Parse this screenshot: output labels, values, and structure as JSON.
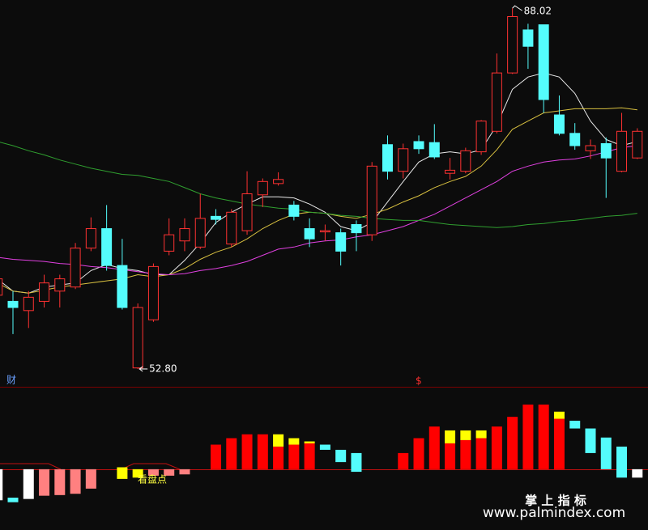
{
  "chart_data": [
    {
      "type": "candlestick",
      "up_color": "#ff3232",
      "down_color": "#54fcfc",
      "open": [
        60.0,
        59.4,
        58.5,
        59.4,
        60.4,
        60.8,
        64.6,
        66.5,
        62.9,
        52.9,
        57.6,
        64.3,
        65.3,
        64.7,
        67.7,
        65.0,
        66.3,
        69.8,
        70.9,
        68.8,
        66.5,
        66.2,
        66.1,
        66.9,
        65.9,
        74.7,
        72.1,
        75.0,
        74.9,
        71.9,
        72.1,
        74.0,
        76.0,
        81.7,
        85.9,
        86.4,
        77.6,
        75.8,
        74.1,
        74.8,
        72.1,
        73.4
      ],
      "close": [
        61.6,
        58.8,
        59.8,
        61.2,
        61.6,
        64.6,
        66.5,
        62.9,
        58.8,
        58.8,
        62.8,
        65.9,
        66.5,
        67.5,
        67.4,
        68.1,
        69.9,
        71.1,
        71.3,
        67.7,
        65.5,
        66.3,
        64.3,
        66.1,
        72.6,
        72.1,
        74.3,
        74.3,
        73.5,
        72.2,
        74.1,
        77.0,
        81.7,
        87.2,
        84.3,
        79.1,
        75.8,
        74.6,
        74.6,
        73.4,
        76.0,
        76.0
      ],
      "high": [
        62.0,
        60.4,
        60.4,
        62.0,
        62.0,
        65.1,
        67.6,
        68.8,
        65.5,
        59.2,
        63.1,
        67.5,
        67.5,
        69.9,
        68.4,
        68.4,
        72.1,
        71.4,
        72.0,
        69.2,
        67.5,
        66.9,
        66.5,
        67.3,
        73.0,
        75.6,
        74.8,
        75.6,
        76.7,
        73.4,
        74.4,
        77.1,
        83.6,
        88.02,
        86.5,
        86.4,
        79.5,
        76.8,
        75.2,
        75.4,
        77.8,
        76.3
      ],
      "low": [
        59.6,
        56.2,
        56.8,
        58.8,
        58.8,
        60.6,
        64.3,
        62.4,
        58.6,
        52.8,
        57.4,
        63.9,
        64.3,
        64.5,
        66.9,
        64.7,
        65.9,
        68.6,
        70.7,
        67.3,
        64.7,
        65.3,
        62.9,
        64.3,
        65.3,
        71.3,
        71.4,
        73.8,
        73.3,
        71.3,
        71.9,
        73.7,
        75.8,
        81.6,
        82.1,
        77.8,
        75.6,
        74.2,
        73.3,
        69.5,
        72.0,
        73.3
      ],
      "high_value_labels": [
        null,
        null,
        null,
        null,
        null,
        null,
        null,
        null,
        null,
        null,
        null,
        null,
        null,
        null,
        null,
        null,
        null,
        null,
        null,
        null,
        null,
        null,
        null,
        null,
        null,
        null,
        null,
        null,
        null,
        null,
        null,
        null,
        null,
        "88.02",
        null,
        null,
        null,
        null,
        null,
        null,
        null,
        null
      ],
      "low_value_labels": [
        null,
        null,
        null,
        null,
        null,
        null,
        null,
        null,
        null,
        "52.80",
        null,
        null,
        null,
        null,
        null,
        null,
        null,
        null,
        null,
        null,
        null,
        null,
        null,
        null,
        null,
        null,
        null,
        null,
        null,
        null,
        null,
        null,
        null,
        null,
        null,
        null,
        null,
        null,
        null,
        null,
        null,
        null
      ],
      "lines": [
        {
          "color": "#e8e8e8",
          "values": [
            61.6,
            60.4,
            60.2,
            60.8,
            61.0,
            61.2,
            62.4,
            63.0,
            62.6,
            62.4,
            62.0,
            62.0,
            63.4,
            65.1,
            67.1,
            68.1,
            68.9,
            69.6,
            69.6,
            69.5,
            68.9,
            68.1,
            66.7,
            66.3,
            67.1,
            69.1,
            71.1,
            73.0,
            73.8,
            74.0,
            73.8,
            74.2,
            76.6,
            80.1,
            81.3,
            81.7,
            81.3,
            79.7,
            77.0,
            75.2,
            74.6,
            75.0
          ]
        },
        {
          "color": "#d8c040",
          "values": [
            61.2,
            60.4,
            60.2,
            60.5,
            60.8,
            61.0,
            61.2,
            61.4,
            61.6,
            62.0,
            61.8,
            62.0,
            62.6,
            63.5,
            64.2,
            64.7,
            65.5,
            66.5,
            67.3,
            67.9,
            68.1,
            68.0,
            67.7,
            67.5,
            67.9,
            68.4,
            69.1,
            69.7,
            70.5,
            71.1,
            71.6,
            72.6,
            74.2,
            76.2,
            77.0,
            77.8,
            78.0,
            78.2,
            78.2,
            78.2,
            78.3,
            78.1
          ]
        },
        {
          "color": "#e040e0",
          "values": [
            63.7,
            63.5,
            63.4,
            63.3,
            63.1,
            63.0,
            62.8,
            62.7,
            62.5,
            62.3,
            62.1,
            62.0,
            62.1,
            62.4,
            62.6,
            62.9,
            63.3,
            63.9,
            64.5,
            64.7,
            65.1,
            65.3,
            65.4,
            65.7,
            65.9,
            66.3,
            66.7,
            67.3,
            67.9,
            68.7,
            69.5,
            70.3,
            71.1,
            72.1,
            72.6,
            73.0,
            73.2,
            73.3,
            73.6,
            74.0,
            74.4,
            74.6
          ]
        },
        {
          "color": "#30a030",
          "values": [
            75.0,
            74.6,
            74.1,
            73.7,
            73.2,
            72.8,
            72.4,
            72.1,
            71.8,
            71.7,
            71.4,
            71.1,
            70.5,
            69.9,
            69.5,
            69.2,
            68.9,
            68.7,
            68.5,
            68.4,
            68.1,
            68.0,
            67.8,
            67.7,
            67.5,
            67.4,
            67.3,
            67.3,
            67.1,
            66.9,
            66.8,
            66.7,
            66.6,
            66.7,
            66.9,
            67.0,
            67.2,
            67.3,
            67.5,
            67.7,
            67.8,
            68.0
          ]
        }
      ],
      "ylim": [
        51.06,
        88.82
      ],
      "corner_label": "财",
      "marker_label": "$"
    },
    {
      "type": "range-bar",
      "title": "看盘点",
      "x": [
        0,
        1,
        2,
        3,
        4,
        5,
        6,
        8,
        9,
        10,
        11,
        12,
        14,
        15,
        16,
        17,
        18,
        18,
        19,
        19,
        20,
        20,
        21,
        22,
        23,
        26,
        27,
        28,
        29,
        29,
        30,
        30,
        31,
        31,
        32,
        33,
        34,
        35,
        36,
        36,
        37,
        38,
        39,
        40,
        41
      ],
      "from": [
        0,
        -0.44,
        0,
        0,
        0,
        0,
        0,
        0.03,
        0,
        0,
        0,
        0,
        0,
        0,
        0,
        0,
        0,
        0.35,
        0,
        0.38,
        0,
        0.4,
        0.38,
        0.3,
        0.25,
        0,
        0,
        0,
        0,
        0.4,
        0,
        0.45,
        0,
        0.48,
        0,
        0,
        0,
        0,
        0,
        0.78,
        0.75,
        0.63,
        0.49,
        0.35,
        0
      ],
      "to": [
        -0.48,
        -0.51,
        -0.46,
        -0.41,
        -0.4,
        -0.38,
        -0.3,
        -0.15,
        -0.13,
        -0.1,
        -0.1,
        -0.08,
        0.38,
        0.48,
        0.54,
        0.54,
        0.35,
        0.54,
        0.38,
        0.48,
        0.4,
        0.43,
        0.3,
        0.11,
        -0.04,
        0.25,
        0.48,
        0.66,
        0.4,
        0.6,
        0.45,
        0.6,
        0.48,
        0.6,
        0.66,
        0.81,
        1,
        1,
        0.78,
        0.89,
        0.63,
        0.25,
        0,
        -0.13,
        -0.13
      ],
      "colors": [
        "#ffffff",
        "#54fcfc",
        "#ffffff",
        "#ff8080",
        "#ff8080",
        "#ff8080",
        "#ff8080",
        "#ffff00",
        "#ffff00",
        "#ff8080",
        "#ff8080",
        "#ff8080",
        "#ff0000",
        "#ff0000",
        "#ff0000",
        "#ff0000",
        "#ff0000",
        "#ffff00",
        "#ff0000",
        "#ffff00",
        "#ff0000",
        "#ffff00",
        "#54fcfc",
        "#54fcfc",
        "#54fcfc",
        "#ff0000",
        "#ff0000",
        "#ff0000",
        "#ff0000",
        "#ffff00",
        "#ff0000",
        "#ffff00",
        "#ff0000",
        "#ffff00",
        "#ff0000",
        "#ff0000",
        "#ff0000",
        "#ff0000",
        "#ff0000",
        "#ffff00",
        "#54fcfc",
        "#54fcfc",
        "#54fcfc",
        "#54fcfc",
        "#ffffff"
      ],
      "ylim": [
        -0.94,
        1.25
      ]
    }
  ],
  "watermark": {
    "title": "掌 上 指 标",
    "url": "www.palmindex.com"
  }
}
